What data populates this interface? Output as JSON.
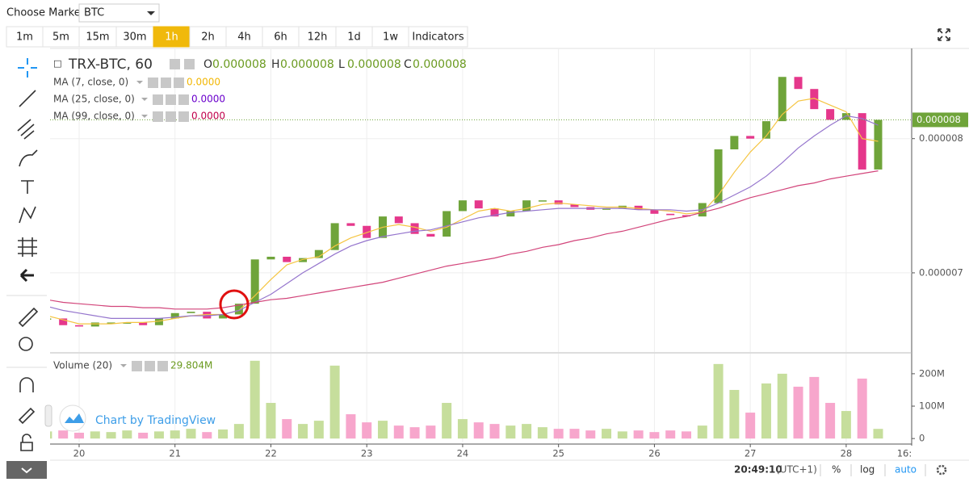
{
  "toolbar": {
    "market_label": "Choose Market:",
    "market": "BTC",
    "intervals": [
      "1m",
      "5m",
      "15m",
      "30m",
      "1h",
      "2h",
      "4h",
      "6h",
      "12h",
      "1d",
      "1w"
    ],
    "active_interval": "1h",
    "indicators": "Indicators"
  },
  "status_bar": {
    "time": "20:49:10",
    "timezone": "(UTC+1)",
    "percent": "%",
    "log": "log",
    "auto": "auto"
  },
  "watermark": "Chart by TradingView",
  "chart_data": {
    "type": "candlestick",
    "symbol": "TRX-BTC, 60",
    "ohlc": [
      {
        "key": "O",
        "value": "0.000008"
      },
      {
        "key": "H",
        "value": "0.000008"
      },
      {
        "key": "L",
        "value": "0.000008"
      },
      {
        "key": "C",
        "value": "0.000008"
      }
    ],
    "last_price_label": "0.000008",
    "categories": [
      null,
      null,
      "20",
      null,
      null,
      null,
      null,
      null,
      "21",
      null,
      null,
      null,
      null,
      null,
      "22",
      null,
      null,
      null,
      null,
      null,
      "23",
      null,
      null,
      null,
      null,
      null,
      "24",
      null,
      null,
      null,
      null,
      null,
      "25",
      null,
      null,
      null,
      null,
      null,
      "26",
      null,
      null,
      null,
      null,
      null,
      "27",
      null,
      null,
      null,
      null,
      null,
      "28",
      null,
      null
    ],
    "x_edge_label": "16:",
    "close": [
      6.66e-06,
      6.61e-06,
      6.6e-06,
      6.63e-06,
      6.63e-06,
      6.63e-06,
      6.61e-06,
      6.66e-06,
      6.7e-06,
      6.71e-06,
      6.66e-06,
      6.69e-06,
      6.77e-06,
      7.1e-06,
      7.12e-06,
      7.08e-06,
      7.11e-06,
      7.17e-06,
      7.37e-06,
      7.35e-06,
      7.26e-06,
      7.42e-06,
      7.37e-06,
      7.29e-06,
      7.27e-06,
      7.46e-06,
      7.54e-06,
      7.48e-06,
      7.42e-06,
      7.46e-06,
      7.54e-06,
      7.54e-06,
      7.51e-06,
      7.49e-06,
      7.47e-06,
      7.48e-06,
      7.5e-06,
      7.47e-06,
      7.44e-06,
      7.43e-06,
      7.42e-06,
      7.52e-06,
      7.92e-06,
      8.02e-06,
      8e-06,
      8.13e-06,
      8.46e-06,
      8.37e-06,
      8.22e-06,
      8.14e-06,
      8.19e-06,
      7.77e-06,
      8.14e-06
    ],
    "up_color": "#6fa43a",
    "down_color": "#e5378b",
    "series": [
      {
        "name": "MA (7, close, 0)",
        "legend_value": "0.0000",
        "color": "#f2b705",
        "line_color": "#f5c542",
        "values": [
          6.68e-06,
          6.65e-06,
          6.62e-06,
          6.62e-06,
          6.62e-06,
          6.63e-06,
          6.63e-06,
          6.64e-06,
          6.66e-06,
          6.68e-06,
          6.69e-06,
          6.69e-06,
          6.72e-06,
          6.83e-06,
          6.95e-06,
          7.06e-06,
          7.1e-06,
          7.12e-06,
          7.2e-06,
          7.26e-06,
          7.3e-06,
          7.34e-06,
          7.36e-06,
          7.34e-06,
          7.31e-06,
          7.34e-06,
          7.4e-06,
          7.46e-06,
          7.48e-06,
          7.46e-06,
          7.48e-06,
          7.51e-06,
          7.52e-06,
          7.51e-06,
          7.5e-06,
          7.49e-06,
          7.49e-06,
          7.48e-06,
          7.47e-06,
          7.46e-06,
          7.44e-06,
          7.45e-06,
          7.58e-06,
          7.75e-06,
          7.9e-06,
          8.02e-06,
          8.18e-06,
          8.28e-06,
          8.3e-06,
          8.25e-06,
          8.2e-06,
          8e-06,
          7.98e-06
        ]
      },
      {
        "name": "MA (25, close, 0)",
        "legend_value": "0.0000",
        "color": "#6a00cc",
        "line_color": "#9575cd",
        "values": [
          6.75e-06,
          6.72e-06,
          6.7e-06,
          6.68e-06,
          6.66e-06,
          6.66e-06,
          6.66e-06,
          6.66e-06,
          6.67e-06,
          6.68e-06,
          6.68e-06,
          6.69e-06,
          6.72e-06,
          6.78e-06,
          6.84e-06,
          6.92e-06,
          7e-06,
          7.07e-06,
          7.14e-06,
          7.2e-06,
          7.24e-06,
          7.27e-06,
          7.29e-06,
          7.31e-06,
          7.32e-06,
          7.35e-06,
          7.38e-06,
          7.41e-06,
          7.43e-06,
          7.45e-06,
          7.46e-06,
          7.47e-06,
          7.48e-06,
          7.48e-06,
          7.48e-06,
          7.48e-06,
          7.48e-06,
          7.47e-06,
          7.47e-06,
          7.47e-06,
          7.46e-06,
          7.47e-06,
          7.52e-06,
          7.58e-06,
          7.64e-06,
          7.72e-06,
          7.82e-06,
          7.93e-06,
          8.02e-06,
          8.1e-06,
          8.17e-06,
          8.15e-06,
          8.1e-06
        ]
      },
      {
        "name": "MA (99, close, 0)",
        "legend_value": "0.0000",
        "color": "#c0004a",
        "line_color": "#d2447a",
        "values": [
          6.8e-06,
          6.78e-06,
          6.77e-06,
          6.76e-06,
          6.75e-06,
          6.75e-06,
          6.74e-06,
          6.74e-06,
          6.73e-06,
          6.73e-06,
          6.73e-06,
          6.74e-06,
          6.76e-06,
          6.78e-06,
          6.8e-06,
          6.81e-06,
          6.83e-06,
          6.85e-06,
          6.87e-06,
          6.89e-06,
          6.91e-06,
          6.93e-06,
          6.96e-06,
          6.99e-06,
          7.02e-06,
          7.05e-06,
          7.07e-06,
          7.09e-06,
          7.11e-06,
          7.14e-06,
          7.16e-06,
          7.19e-06,
          7.21e-06,
          7.24e-06,
          7.26e-06,
          7.29e-06,
          7.31e-06,
          7.34e-06,
          7.37e-06,
          7.4e-06,
          7.42e-06,
          7.45e-06,
          7.48e-06,
          7.52e-06,
          7.56e-06,
          7.59e-06,
          7.62e-06,
          7.65e-06,
          7.67e-06,
          7.7e-06,
          7.72e-06,
          7.74e-06,
          7.76e-06
        ]
      }
    ],
    "ylim": [
      6.41e-06,
      8.66e-06
    ],
    "yticks": [
      7e-06,
      8e-06
    ],
    "grid": true,
    "volume": {
      "name": "Volume (20)",
      "legend_value": "29.804M",
      "up_color": "#c6de9c",
      "down_color": "#f7a6cc",
      "values": [
        22,
        25,
        18,
        22,
        20,
        25,
        18,
        22,
        25,
        30,
        20,
        28,
        45,
        240,
        110,
        60,
        45,
        55,
        225,
        75,
        50,
        55,
        40,
        35,
        40,
        110,
        60,
        50,
        45,
        40,
        45,
        35,
        30,
        30,
        25,
        30,
        22,
        25,
        20,
        25,
        22,
        40,
        230,
        150,
        80,
        170,
        200,
        160,
        190,
        110,
        85,
        185,
        29.804
      ],
      "ylim": [
        -12,
        262
      ],
      "yticks": [
        0,
        {
          "value": 100,
          "label": "100M"
        },
        {
          "value": 200,
          "label": "200M"
        }
      ]
    }
  }
}
